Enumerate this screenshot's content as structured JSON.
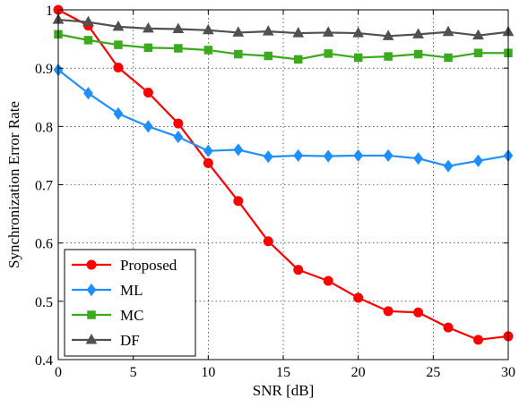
{
  "chart_data": {
    "type": "line",
    "title": "",
    "xlabel": "SNR [dB]",
    "ylabel": "Synchronization Error Rate",
    "xlim": [
      0,
      30
    ],
    "ylim": [
      0.4,
      1.0
    ],
    "xticks": [
      0,
      5,
      10,
      15,
      20,
      25,
      30
    ],
    "yticks": [
      0.4,
      0.5,
      0.6,
      0.7,
      0.8,
      0.9,
      1.0
    ],
    "xtick_labels": [
      "0",
      "5",
      "10",
      "15",
      "20",
      "25",
      "30"
    ],
    "ytick_labels": [
      "0.4",
      "0.5",
      "0.6",
      "0.7",
      "0.8",
      "0.9",
      "1"
    ],
    "grid": true,
    "legend_position": "bottom-left",
    "x": [
      0,
      2,
      4,
      6,
      8,
      10,
      12,
      14,
      16,
      18,
      20,
      22,
      24,
      26,
      28,
      30
    ],
    "series": [
      {
        "name": "Proposed",
        "color": "#ff0000",
        "marker": "circle",
        "values": [
          1.0,
          0.973,
          0.901,
          0.858,
          0.805,
          0.737,
          0.672,
          0.603,
          0.554,
          0.535,
          0.506,
          0.483,
          0.481,
          0.455,
          0.434,
          0.44
        ]
      },
      {
        "name": "ML",
        "color": "#1f8fff",
        "marker": "diamond",
        "values": [
          0.897,
          0.857,
          0.822,
          0.8,
          0.782,
          0.758,
          0.76,
          0.748,
          0.75,
          0.749,
          0.75,
          0.75,
          0.745,
          0.732,
          0.741,
          0.75
        ]
      },
      {
        "name": "MC",
        "color": "#3caa1e",
        "marker": "square",
        "values": [
          0.958,
          0.948,
          0.94,
          0.935,
          0.934,
          0.931,
          0.924,
          0.921,
          0.915,
          0.925,
          0.918,
          0.92,
          0.924,
          0.918,
          0.926,
          0.926
        ]
      },
      {
        "name": "DF",
        "color": "#505050",
        "marker": "triangle",
        "values": [
          0.983,
          0.979,
          0.971,
          0.968,
          0.967,
          0.965,
          0.961,
          0.963,
          0.96,
          0.961,
          0.96,
          0.955,
          0.958,
          0.962,
          0.956,
          0.962
        ]
      }
    ]
  }
}
